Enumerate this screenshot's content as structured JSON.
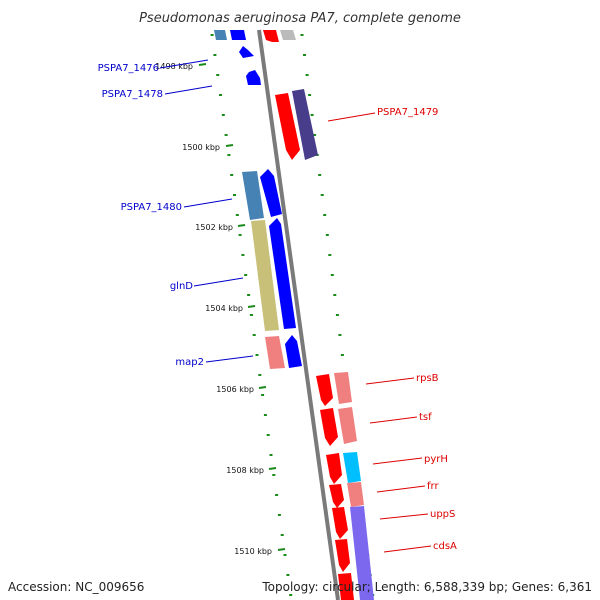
{
  "title": "Pseudomonas aeruginosa PA7, complete genome",
  "footer": {
    "accession": "Accession: NC_009656",
    "summary": "Topology: circular; Length: 6,588,339 bp; Genes: 6,361"
  },
  "colors": {
    "backbone": "#7a7a7a",
    "tick": "#1a8a1a",
    "label_minus": "#0000cc",
    "label_plus": "#dd0000",
    "red": "#ff0000",
    "dark_red": "#c00000",
    "pink": "#f08080",
    "blue": "#0000ff",
    "steelblue": "#4682b4",
    "khaki": "#c8c078",
    "slateblue": "#483d8b",
    "cyan": "#00bfff",
    "mediumpurple": "#7b68ee"
  },
  "kbp_labels": [
    "1498 kbp",
    "1500 kbp",
    "1502 kbp",
    "1504 kbp",
    "1506 kbp",
    "1508 kbp",
    "1510 kbp"
  ],
  "gene_labels_left": [
    "PSPA7_1476",
    "PSPA7_1478",
    "PSPA7_1480",
    "glnD",
    "map2"
  ],
  "gene_labels_right": [
    "PSPA7_1479",
    "rpsB",
    "tsf",
    "pyrH",
    "frr",
    "uppS",
    "cdsA"
  ]
}
